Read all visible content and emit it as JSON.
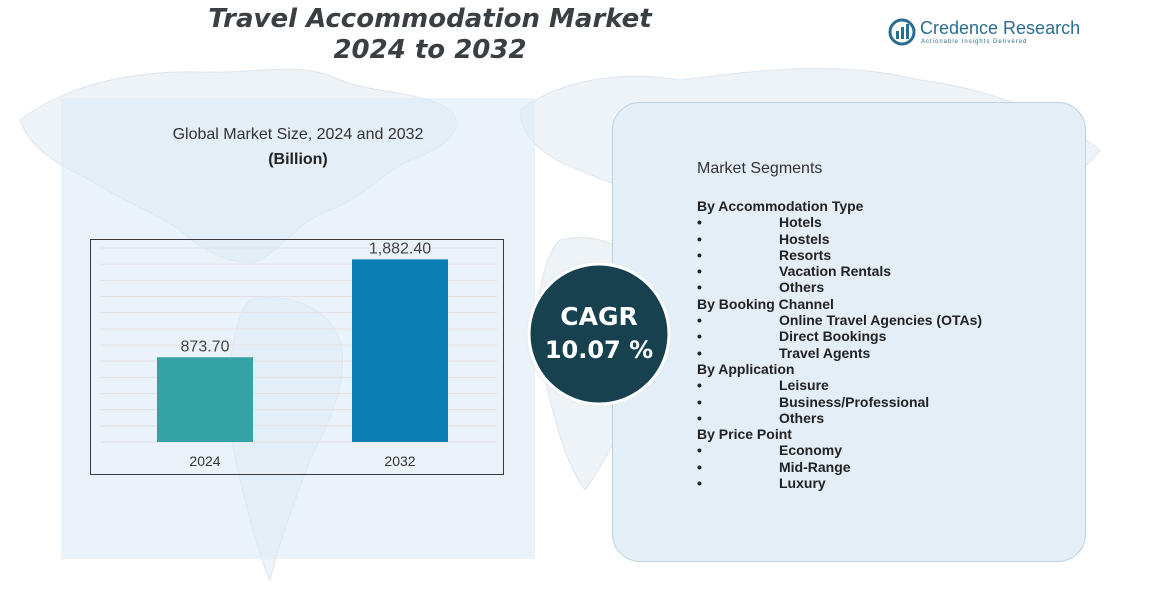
{
  "header": {
    "title_line1": "Travel Accommodation Market",
    "title_line2": "2024 to 2032"
  },
  "logo": {
    "name": "Credence Research",
    "tagline": "Actionable Insights Delivered",
    "icon": "bar-chart-logo-icon",
    "color": "#2a6d8f"
  },
  "chart_data": {
    "type": "bar",
    "title": "Global Market Size,  2024 and 2032",
    "subtitle": "(Billion)",
    "categories": [
      "2024",
      "2032"
    ],
    "values": [
      873.7,
      1882.4
    ],
    "data_labels": [
      "873.70",
      "1,882.40"
    ],
    "colors": [
      "#35a3a6",
      "#0b7fb3"
    ],
    "ylim": [
      0,
      2000
    ],
    "grid": true
  },
  "cagr": {
    "label": "CAGR",
    "value": "10.07 %",
    "circle_color": "#17414f"
  },
  "segments": {
    "title": "Market Segments",
    "groups": [
      {
        "name": "By Accommodation Type",
        "items": [
          "Hotels",
          "Hostels",
          "Resorts",
          "Vacation Rentals",
          "Others"
        ]
      },
      {
        "name": "By Booking Channel",
        "items": [
          "Online Travel Agencies (OTAs)",
          "Direct Bookings",
          "Travel Agents"
        ]
      },
      {
        "name": "By Application",
        "items": [
          "Leisure",
          "Business/Professional",
          "Others"
        ]
      },
      {
        "name": "By Price Point",
        "items": [
          "Economy",
          "Mid-Range",
          "Luxury"
        ]
      }
    ],
    "bullet": "•"
  }
}
